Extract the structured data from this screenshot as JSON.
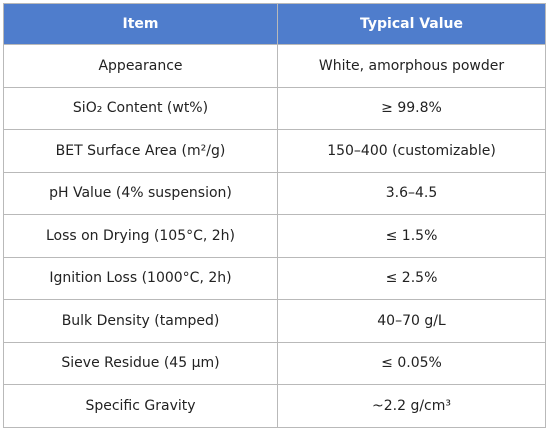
{
  "table": {
    "headers": {
      "item": "Item",
      "value": "Typical Value"
    },
    "header_color": "#4f7dcc",
    "rows": [
      {
        "item": "Appearance",
        "value": "White, amorphous powder"
      },
      {
        "item": "SiO₂ Content (wt%)",
        "value": "≥ 99.8%"
      },
      {
        "item": "BET Surface Area (m²/g)",
        "value": "150–400 (customizable)"
      },
      {
        "item": "pH Value (4% suspension)",
        "value": "3.6–4.5"
      },
      {
        "item": "Loss on Drying (105°C, 2h)",
        "value": "≤ 1.5%"
      },
      {
        "item": "Ignition Loss (1000°C, 2h)",
        "value": "≤ 2.5%"
      },
      {
        "item": "Bulk Density (tamped)",
        "value": "40–70 g/L"
      },
      {
        "item": "Sieve Residue (45 µm)",
        "value": "≤ 0.05%"
      },
      {
        "item": "Specific Gravity",
        "value": "~2.2 g/cm³"
      }
    ]
  }
}
